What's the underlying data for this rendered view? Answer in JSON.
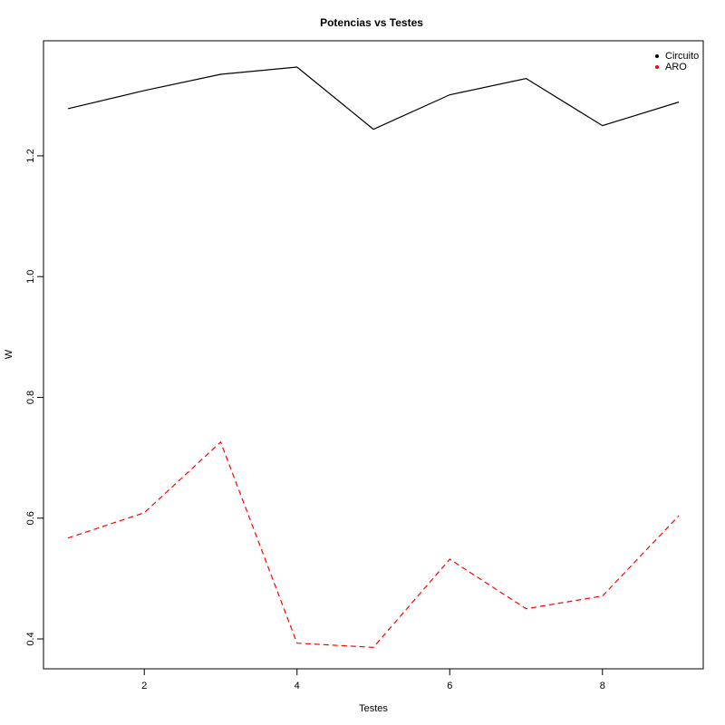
{
  "chart_data": {
    "type": "line",
    "title": "Potencias vs Testes",
    "x_label": "Testes",
    "y_label": "W",
    "x": [
      1,
      2,
      3,
      4,
      5,
      6,
      7,
      8,
      9
    ],
    "series": [
      {
        "name": "Circuito",
        "color": "#000000",
        "linestyle": "solid",
        "values": [
          1.278,
          1.308,
          1.335,
          1.347,
          1.244,
          1.301,
          1.328,
          1.25,
          1.289
        ]
      },
      {
        "name": "ARO",
        "color": "#ff0000",
        "linestyle": "dashed",
        "values": [
          0.567,
          0.609,
          0.726,
          0.393,
          0.386,
          0.532,
          0.45,
          0.471,
          0.604
        ]
      }
    ],
    "xlim": [
      0.68,
      9.32
    ],
    "xticks": [
      2,
      4,
      6,
      8
    ],
    "ylim": [
      0.3505,
      1.3905
    ],
    "yticks": [
      0.4,
      0.6,
      0.8,
      {
        "value": 1,
        "label": "1.0"
      },
      1.2
    ],
    "legend": "top-right",
    "grid": false
  }
}
